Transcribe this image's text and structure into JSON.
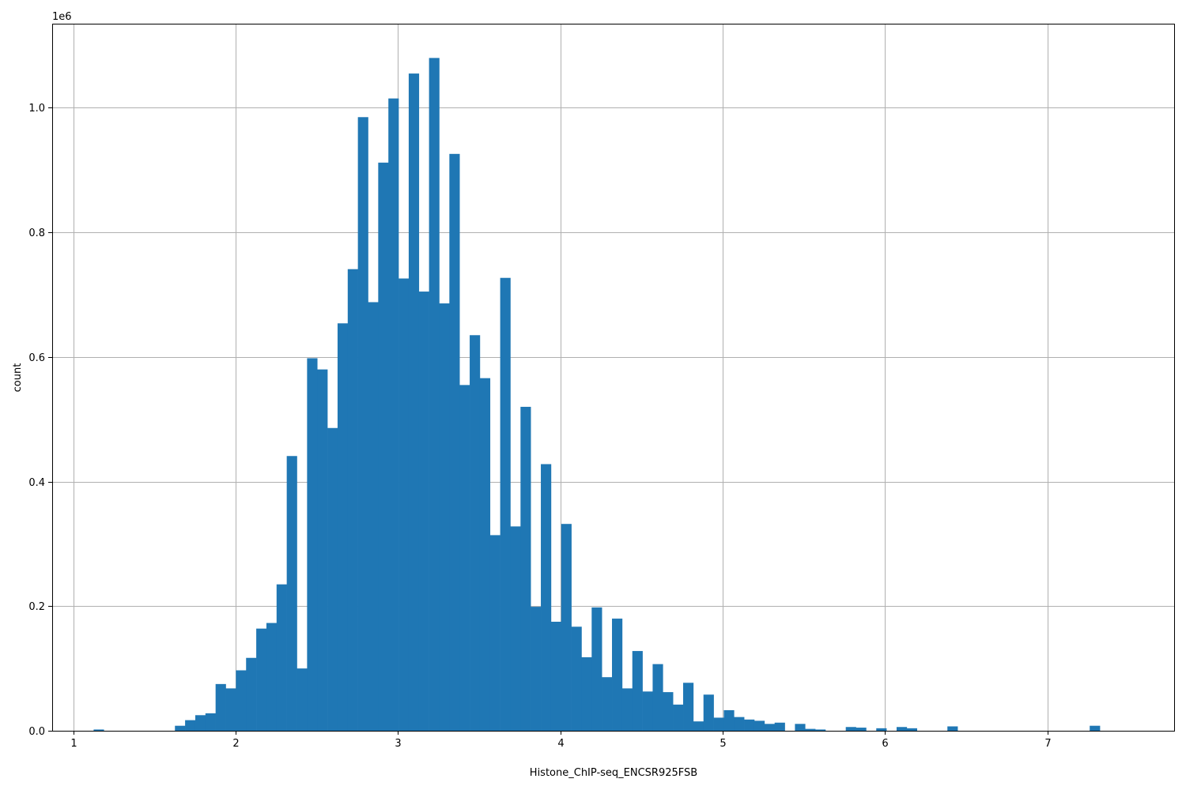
{
  "chart_data": {
    "type": "bar",
    "subtype": "histogram",
    "xlabel": "Histone_ChIP-seq_ENCSR925FSB",
    "ylabel": "count",
    "y_offset_label": "1e6",
    "xlim": [
      0.87,
      7.78
    ],
    "ylim": [
      0,
      1.135
    ],
    "y_scale_note": "values in units of 1e6",
    "grid": true,
    "x_ticks": [
      1,
      2,
      3,
      4,
      5,
      6,
      7
    ],
    "y_ticks": [
      0.0,
      0.2,
      0.4,
      0.6,
      0.8,
      1.0
    ],
    "y_tick_labels": [
      "0.0",
      "0.2",
      "0.4",
      "0.6",
      "0.8",
      "1.0"
    ],
    "bin_start": 1.0,
    "bin_width": 0.0626,
    "color": "#1f77b4",
    "values": [
      0,
      0,
      0.002,
      0,
      0,
      0,
      0,
      0,
      0,
      0,
      0.008,
      0.017,
      0.025,
      0.028,
      0.075,
      0.068,
      0.097,
      0.117,
      0.164,
      0.173,
      0.235,
      0.441,
      0.1,
      0.598,
      0.58,
      0.486,
      0.654,
      0.741,
      0.985,
      0.688,
      0.912,
      1.015,
      0.726,
      1.055,
      0.705,
      1.08,
      0.686,
      0.926,
      0.555,
      0.635,
      0.566,
      0.314,
      0.727,
      0.328,
      0.52,
      0.199,
      0.428,
      0.175,
      0.332,
      0.167,
      0.118,
      0.198,
      0.086,
      0.18,
      0.068,
      0.128,
      0.063,
      0.107,
      0.062,
      0.042,
      0.077,
      0.015,
      0.058,
      0.021,
      0.033,
      0.022,
      0.018,
      0.016,
      0.011,
      0.013,
      0,
      0.011,
      0.003,
      0.002,
      0,
      0,
      0.006,
      0.005,
      0,
      0.004,
      0,
      0.006,
      0.004,
      0,
      0,
      0,
      0.007,
      0,
      0,
      0,
      0,
      0,
      0,
      0,
      0,
      0,
      0,
      0,
      0,
      0,
      0.008
    ]
  }
}
